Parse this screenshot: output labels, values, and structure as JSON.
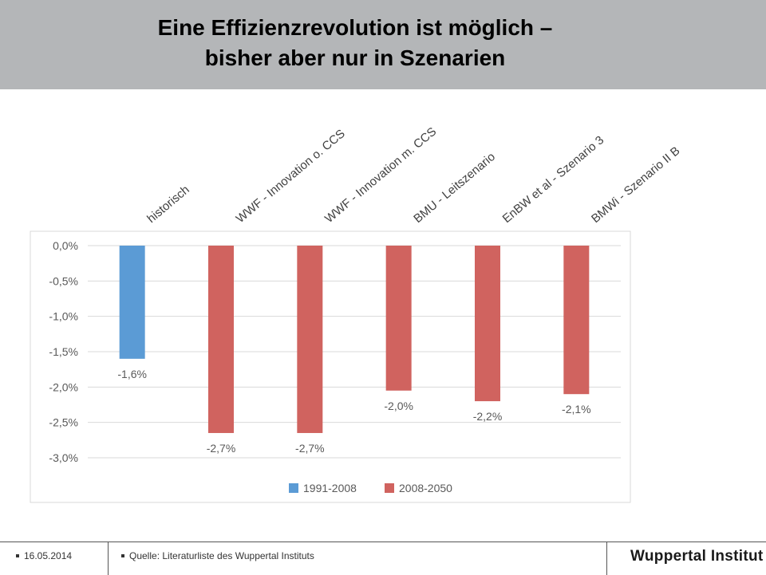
{
  "slide": {
    "title_line1": "Eine Effizienzrevolution ist möglich –",
    "title_line2": "bisher aber nur  in Szenarien"
  },
  "footer": {
    "date": "16.05.2014",
    "source": "Quelle: Literaturliste des Wuppertal Instituts",
    "logo": "Wuppertal Institut"
  },
  "colors": {
    "title_bg": "#b4b6b8",
    "series_hist": "#5b9bd5",
    "series_scen": "#d0635f",
    "grid": "#d9d9d9"
  },
  "chart_data": {
    "type": "bar",
    "categories": [
      "historisch",
      "WWF - Innovation o. CCS",
      "WWF - Innovation m. CCS",
      "BMU - Leitszenario",
      "EnBW et al - Szenario 3",
      "BMWi - Szenario II B"
    ],
    "values": [
      -1.6,
      -2.65,
      -2.65,
      -2.05,
      -2.2,
      -2.1
    ],
    "data_labels": [
      "-1,6%",
      "-2,7%",
      "-2,7%",
      "-2,0%",
      "-2,2%",
      "-2,1%"
    ],
    "series_index": [
      0,
      1,
      1,
      1,
      1,
      1
    ],
    "series": [
      {
        "name": "1991-2008",
        "color": "#5b9bd5"
      },
      {
        "name": "2008-2050",
        "color": "#d0635f"
      }
    ],
    "ylim": [
      -3.0,
      0.0
    ],
    "yticks": [
      0.0,
      -0.5,
      -1.0,
      -1.5,
      -2.0,
      -2.5,
      -3.0
    ],
    "ytick_labels": [
      "0,0%",
      "-0,5%",
      "-1,0%",
      "-1,5%",
      "-2,0%",
      "-2,5%",
      "-3,0%"
    ],
    "grid": true,
    "legend_position": "bottom"
  }
}
